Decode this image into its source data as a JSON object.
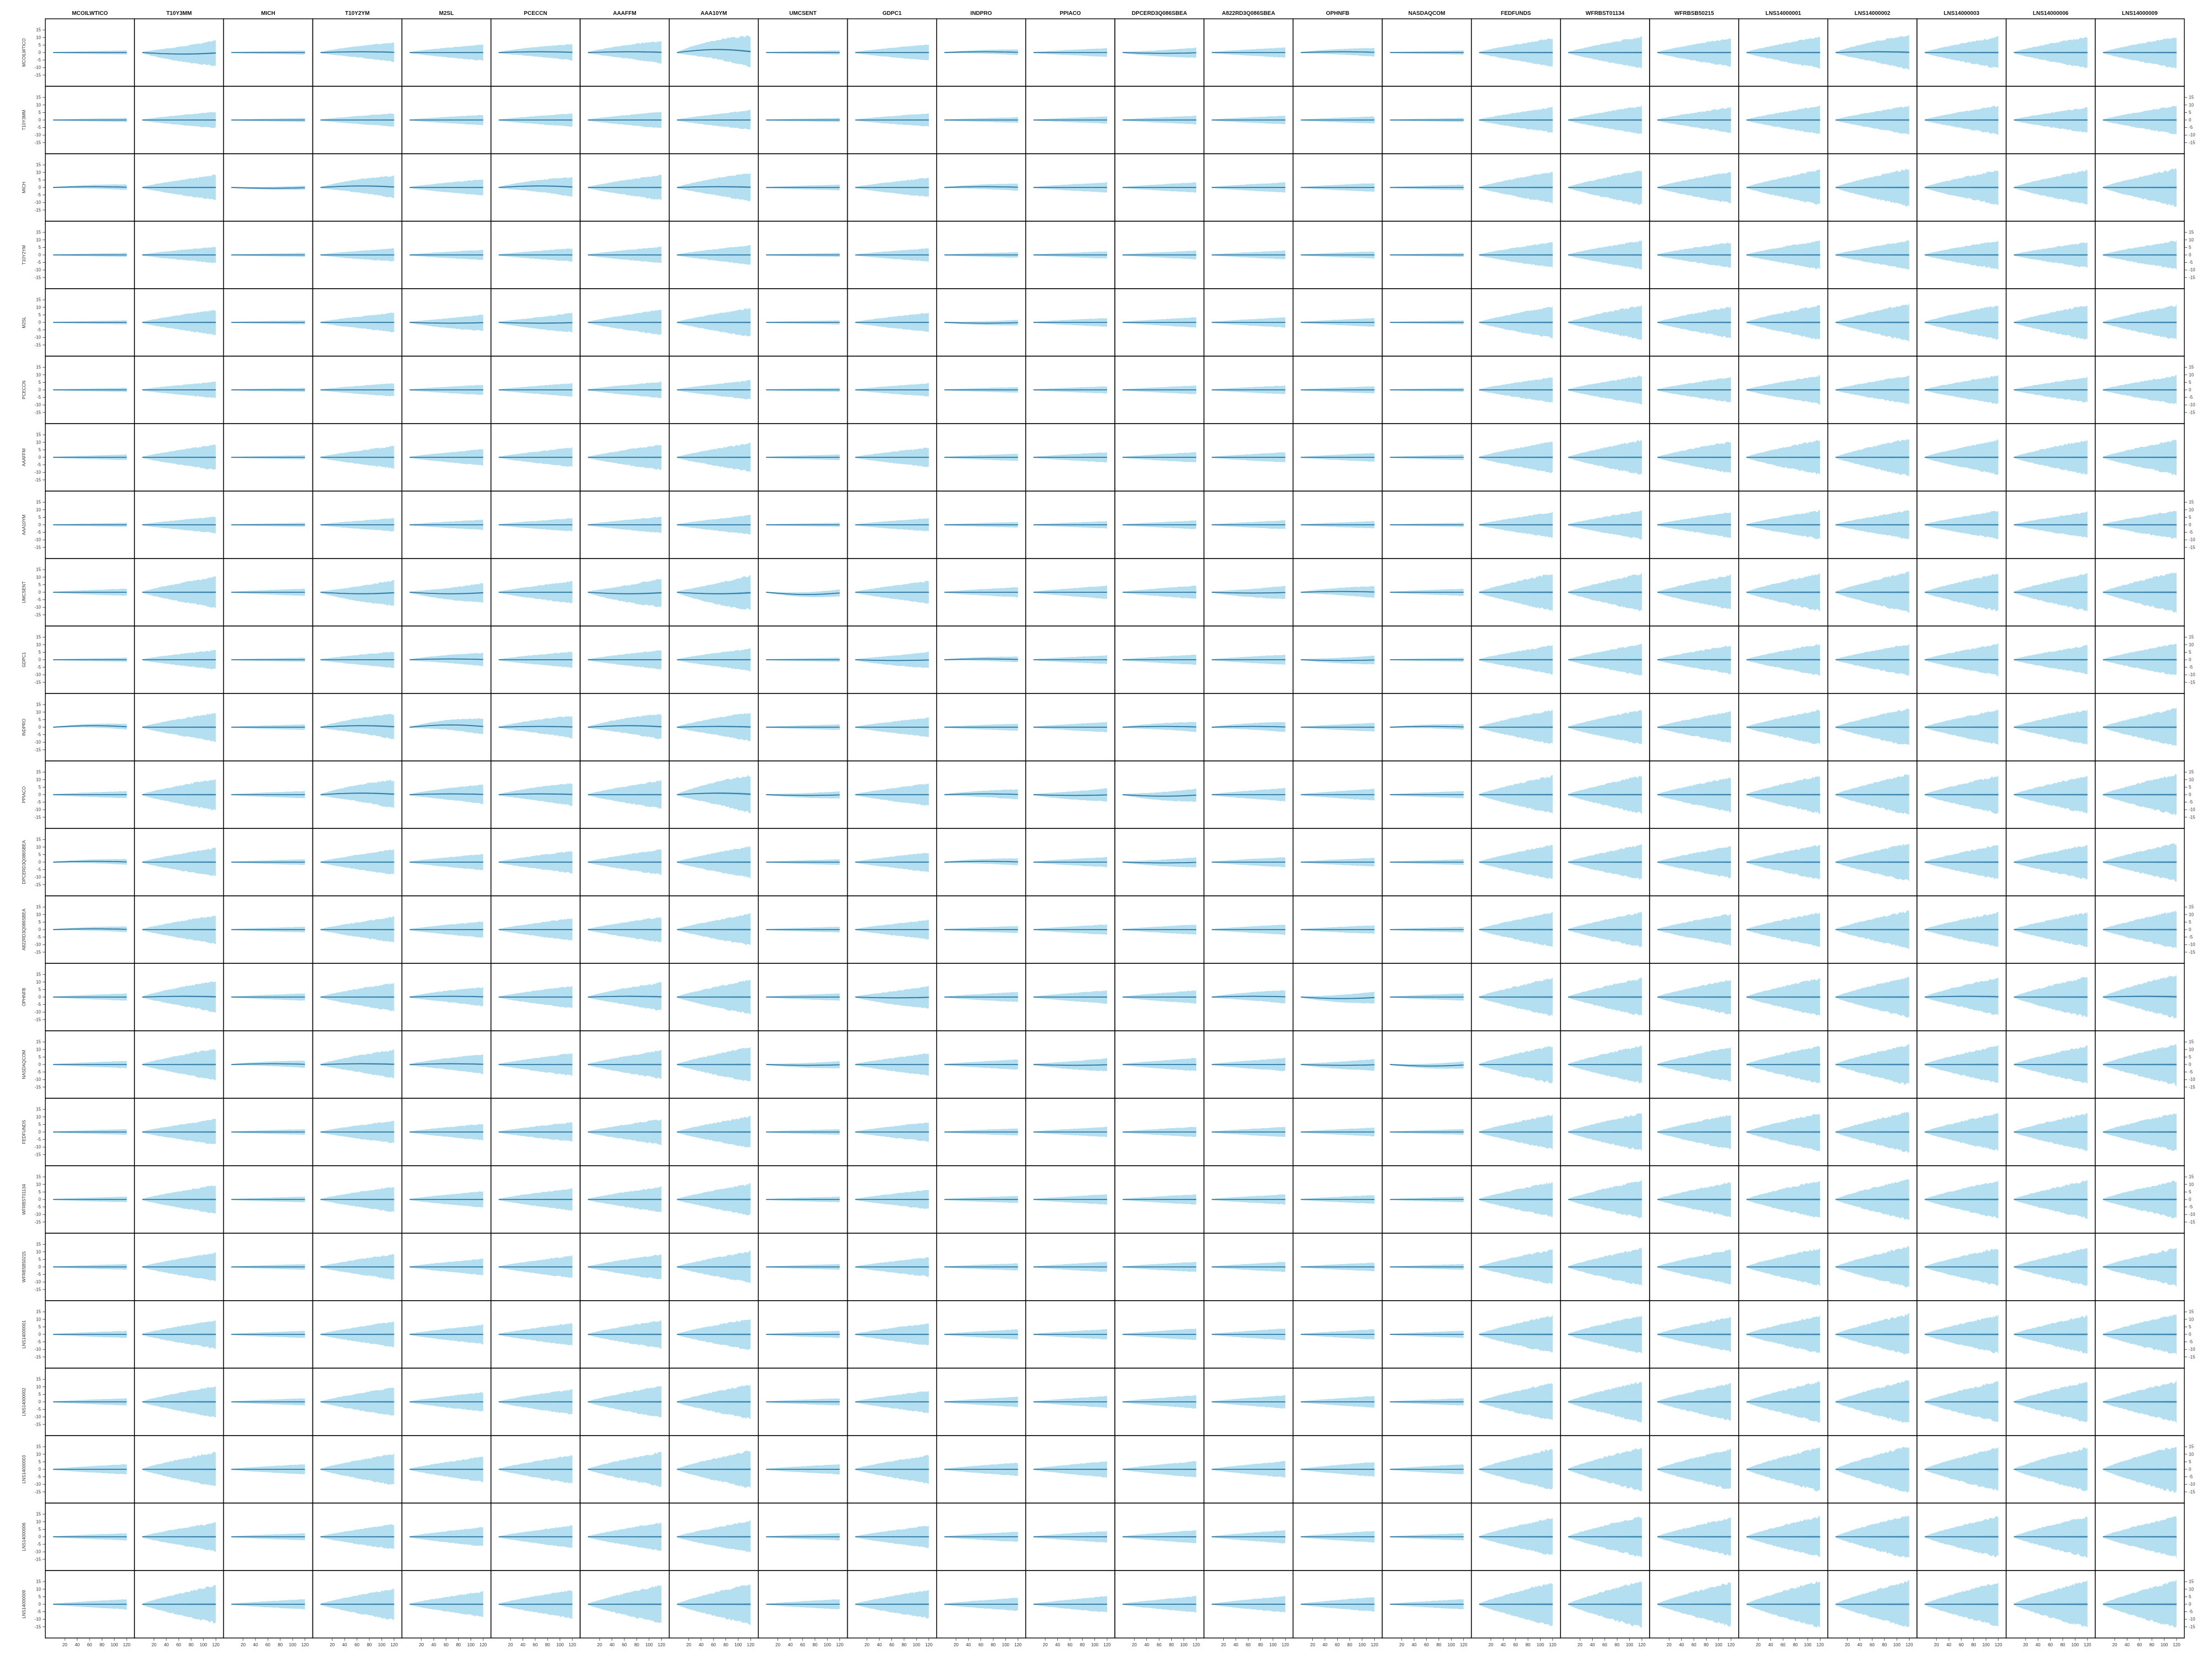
{
  "chart_data": {
    "type": "area",
    "columns": [
      "MCOILWTICO",
      "T10Y3MM",
      "MICH",
      "T10Y2YM",
      "M2SL",
      "PCECCN",
      "AAAFFM",
      "AAA10YM",
      "UMCSENT",
      "GDPC1",
      "INDPRO",
      "PPIACO",
      "DPCERD3Q086SBEA",
      "A822RD3Q086SBEA",
      "OPHNFB",
      "NASDAQCOM",
      "FEDFUNDS",
      "WFRBST01134",
      "WFRBSB50215",
      "LNS14000001",
      "LNS14000002",
      "LNS14000003",
      "LNS14000006",
      "LNS14000009"
    ],
    "rows": [
      "MCOILWTICO",
      "T10Y3MM",
      "MICH",
      "T10Y2YM",
      "M2SL",
      "PCECCN",
      "AAAFFM",
      "AAA10YM",
      "UMCSENT",
      "GDPC1",
      "INDPRO",
      "PPIACO",
      "DPCERD3Q086SBEA",
      "A822RD3Q086SBEA",
      "OPHNFB",
      "NASDAQCOM",
      "FEDFUNDS",
      "WFRBST01134",
      "WFRBSB50215",
      "LNS14000001",
      "LNS14000002",
      "LNS14000003",
      "LNS14000006",
      "LNS14000009"
    ],
    "x_ticks": [
      20,
      40,
      60,
      80,
      100,
      120
    ],
    "xlim": [
      1,
      120
    ],
    "y_ticks": [
      -15,
      -10,
      -5,
      0,
      5,
      10,
      15
    ],
    "ylim": [
      -18,
      18
    ],
    "y_axis_sides": [
      "left",
      "right"
    ],
    "series_colors": {
      "band": "#b3dff1",
      "median": "#2c6f99"
    },
    "band_growth": "width of credible band grows with horizon from the first column to the last",
    "band_terminal_halfwidth": [
      [
        1.0,
        8.0,
        1.0,
        6.0,
        5.0,
        5.0,
        7.0,
        10.0,
        1.0,
        5.0,
        1.5,
        2.5,
        3.0,
        3.0,
        2.5,
        1.0,
        9.0,
        10.0,
        9.0,
        10.0,
        11.0,
        10.0,
        10.0,
        10.0
      ],
      [
        1.0,
        5.0,
        1.0,
        4.0,
        3.0,
        4.0,
        5.0,
        6.0,
        1.0,
        4.0,
        1.5,
        2.0,
        2.5,
        2.5,
        2.0,
        1.0,
        8.0,
        9.0,
        8.0,
        9.0,
        9.0,
        9.0,
        8.0,
        9.0
      ],
      [
        1.5,
        8.0,
        1.0,
        7.0,
        5.0,
        6.0,
        8.0,
        9.0,
        1.5,
        6.0,
        2.0,
        3.0,
        3.0,
        3.0,
        2.5,
        1.5,
        10.0,
        11.0,
        10.0,
        11.0,
        12.0,
        11.0,
        11.0,
        12.0
      ],
      [
        1.0,
        5.0,
        1.0,
        4.0,
        3.0,
        4.0,
        5.0,
        6.0,
        1.0,
        4.0,
        1.5,
        2.0,
        2.5,
        2.5,
        2.0,
        1.0,
        8.0,
        9.0,
        8.0,
        9.0,
        9.0,
        9.0,
        8.0,
        9.0
      ],
      [
        1.0,
        8.0,
        1.0,
        6.0,
        5.0,
        6.0,
        8.0,
        9.0,
        1.0,
        6.0,
        1.5,
        2.5,
        3.0,
        3.0,
        2.5,
        1.0,
        10.0,
        11.0,
        10.0,
        11.0,
        12.0,
        11.0,
        11.0,
        11.0
      ],
      [
        1.0,
        5.0,
        1.0,
        4.0,
        3.0,
        4.0,
        5.0,
        6.0,
        1.0,
        4.0,
        1.5,
        2.0,
        2.5,
        2.5,
        2.0,
        1.0,
        8.0,
        9.0,
        8.0,
        9.0,
        9.0,
        9.0,
        8.0,
        9.0
      ],
      [
        1.5,
        8.0,
        1.0,
        7.0,
        5.0,
        6.0,
        8.0,
        9.0,
        1.5,
        6.0,
        2.0,
        3.0,
        3.0,
        3.0,
        2.5,
        1.5,
        10.0,
        11.0,
        10.0,
        11.0,
        12.0,
        11.0,
        11.0,
        11.0
      ],
      [
        1.0,
        5.0,
        1.0,
        4.0,
        3.0,
        4.0,
        5.0,
        6.0,
        1.0,
        4.0,
        1.5,
        2.0,
        2.5,
        2.5,
        2.0,
        1.0,
        8.0,
        9.0,
        8.0,
        9.0,
        9.0,
        9.0,
        8.0,
        9.0
      ],
      [
        2.0,
        10.0,
        2.0,
        8.0,
        6.0,
        7.0,
        9.0,
        11.0,
        2.0,
        7.0,
        3.0,
        4.0,
        4.0,
        4.0,
        3.5,
        2.0,
        12.0,
        12.0,
        11.0,
        12.0,
        13.0,
        12.0,
        12.0,
        13.0
      ],
      [
        1.0,
        6.0,
        1.0,
        5.0,
        4.0,
        5.0,
        6.0,
        7.0,
        1.0,
        5.0,
        1.5,
        2.5,
        3.0,
        3.0,
        2.5,
        1.0,
        9.0,
        10.0,
        9.0,
        10.0,
        10.0,
        10.0,
        9.0,
        10.0
      ],
      [
        1.5,
        9.0,
        1.5,
        8.0,
        5.0,
        7.0,
        8.0,
        9.0,
        1.5,
        6.0,
        2.0,
        3.0,
        3.0,
        3.0,
        2.5,
        1.5,
        11.0,
        11.0,
        10.0,
        11.0,
        12.0,
        11.0,
        11.0,
        12.0
      ],
      [
        2.0,
        10.0,
        2.0,
        9.0,
        6.0,
        7.0,
        9.0,
        12.0,
        2.0,
        7.0,
        3.0,
        4.0,
        4.0,
        4.0,
        3.5,
        2.0,
        12.0,
        12.0,
        11.0,
        12.0,
        13.0,
        12.0,
        12.0,
        13.0
      ],
      [
        1.5,
        9.0,
        1.5,
        8.0,
        5.0,
        7.0,
        8.0,
        10.0,
        1.5,
        6.0,
        2.0,
        3.0,
        3.0,
        3.0,
        2.5,
        1.5,
        11.0,
        11.0,
        10.0,
        11.0,
        12.0,
        11.0,
        11.0,
        12.0
      ],
      [
        1.5,
        9.0,
        1.5,
        8.0,
        5.0,
        7.0,
        8.0,
        10.0,
        1.5,
        6.0,
        2.0,
        3.0,
        3.0,
        3.0,
        2.5,
        1.5,
        11.0,
        11.0,
        10.0,
        11.0,
        12.0,
        11.0,
        11.0,
        12.0
      ],
      [
        2.0,
        10.0,
        2.0,
        9.0,
        6.0,
        7.0,
        9.0,
        11.0,
        2.0,
        7.0,
        3.0,
        4.0,
        4.0,
        4.0,
        3.5,
        2.0,
        12.0,
        12.0,
        11.0,
        12.0,
        13.0,
        12.0,
        13.0,
        14.0
      ],
      [
        2.0,
        10.0,
        2.0,
        9.0,
        6.0,
        7.0,
        9.0,
        11.0,
        2.0,
        7.0,
        3.0,
        4.0,
        4.0,
        4.0,
        3.5,
        2.0,
        12.0,
        12.0,
        11.0,
        12.0,
        13.0,
        12.0,
        12.0,
        13.0
      ],
      [
        1.5,
        8.0,
        1.5,
        7.0,
        5.0,
        6.0,
        8.0,
        10.0,
        1.5,
        6.0,
        2.0,
        3.0,
        3.0,
        3.0,
        2.5,
        1.5,
        11.0,
        12.0,
        11.0,
        12.0,
        13.0,
        12.0,
        12.0,
        12.0
      ],
      [
        1.5,
        9.0,
        1.5,
        8.0,
        5.0,
        7.0,
        8.0,
        10.0,
        1.5,
        6.0,
        2.0,
        3.0,
        3.0,
        3.0,
        2.5,
        1.5,
        11.0,
        12.0,
        11.0,
        12.0,
        13.0,
        12.0,
        12.0,
        12.0
      ],
      [
        1.5,
        9.0,
        1.5,
        8.0,
        5.0,
        7.0,
        8.0,
        10.0,
        1.5,
        6.0,
        2.0,
        3.0,
        3.0,
        3.0,
        2.5,
        1.5,
        11.0,
        12.0,
        11.0,
        12.0,
        13.0,
        12.0,
        12.0,
        12.0
      ],
      [
        2.0,
        9.0,
        2.0,
        8.0,
        6.0,
        7.0,
        9.0,
        10.0,
        2.0,
        7.0,
        3.0,
        3.0,
        3.5,
        3.5,
        3.0,
        2.0,
        12.0,
        12.0,
        11.0,
        12.0,
        13.0,
        12.0,
        12.0,
        13.0
      ],
      [
        2.0,
        10.0,
        2.0,
        9.0,
        6.0,
        8.0,
        10.0,
        11.0,
        2.0,
        7.0,
        3.0,
        3.5,
        4.0,
        4.0,
        3.5,
        2.0,
        12.0,
        13.0,
        12.0,
        13.0,
        14.0,
        13.0,
        13.0,
        13.0
      ],
      [
        3.0,
        11.0,
        3.0,
        10.0,
        8.0,
        9.0,
        11.0,
        12.0,
        3.0,
        9.0,
        4.0,
        5.0,
        5.0,
        5.0,
        4.5,
        3.0,
        13.0,
        14.0,
        13.0,
        14.0,
        15.0,
        14.0,
        14.0,
        15.0
      ],
      [
        2.0,
        9.0,
        2.0,
        8.0,
        6.0,
        7.0,
        9.0,
        10.0,
        2.0,
        7.0,
        3.0,
        3.5,
        4.0,
        4.0,
        3.5,
        2.0,
        12.0,
        13.0,
        12.0,
        13.0,
        14.0,
        13.0,
        13.0,
        13.0
      ],
      [
        3.0,
        12.0,
        3.0,
        10.0,
        8.0,
        9.0,
        12.0,
        13.0,
        3.0,
        9.0,
        4.0,
        5.0,
        5.0,
        5.0,
        4.5,
        3.0,
        14.0,
        15.0,
        14.0,
        15.0,
        15.0,
        14.0,
        15.0,
        15.0
      ]
    ],
    "median_drift": [
      [
        0.0,
        -1.0,
        0.0,
        0.5,
        0.0,
        0.5,
        0.5,
        2.0,
        0.0,
        0.0,
        0.5,
        0.0,
        -0.5,
        0.0,
        0.5,
        0.0,
        0.0,
        0.0,
        0.0,
        0.0,
        0.5,
        0.0,
        0.0,
        0.0
      ],
      [
        0.0,
        0.0,
        0.0,
        0.0,
        0.0,
        0.0,
        0.0,
        0.0,
        0.0,
        0.0,
        0.0,
        0.0,
        0.0,
        0.0,
        0.0,
        0.0,
        0.0,
        0.0,
        0.0,
        0.0,
        0.0,
        0.0,
        0.0,
        0.0
      ],
      [
        0.5,
        0.0,
        -0.5,
        1.0,
        0.0,
        1.0,
        0.0,
        0.5,
        0.0,
        0.0,
        0.5,
        0.0,
        0.0,
        0.0,
        0.0,
        0.0,
        0.0,
        0.0,
        0.0,
        0.0,
        0.0,
        0.0,
        0.0,
        0.0
      ],
      [
        0.0,
        0.0,
        0.0,
        0.0,
        0.0,
        0.0,
        0.0,
        0.0,
        0.0,
        0.0,
        0.0,
        0.0,
        0.0,
        0.0,
        0.0,
        0.0,
        0.0,
        0.0,
        0.0,
        0.0,
        0.0,
        0.0,
        0.0,
        0.0
      ],
      [
        0.0,
        0.0,
        0.0,
        0.0,
        -0.5,
        -0.5,
        0.0,
        0.0,
        0.0,
        0.0,
        -0.5,
        0.0,
        0.0,
        0.0,
        0.0,
        0.0,
        0.0,
        0.0,
        0.0,
        0.0,
        0.0,
        0.0,
        0.0,
        0.0
      ],
      [
        0.0,
        0.0,
        0.0,
        0.0,
        0.0,
        0.0,
        0.0,
        0.0,
        0.0,
        0.0,
        0.0,
        0.0,
        0.0,
        0.0,
        0.0,
        0.0,
        0.0,
        0.0,
        0.0,
        0.0,
        0.0,
        0.0,
        0.0,
        0.0
      ],
      [
        0.0,
        0.0,
        0.0,
        0.0,
        0.0,
        0.0,
        0.0,
        0.0,
        0.0,
        0.0,
        0.0,
        0.0,
        0.0,
        0.0,
        0.0,
        0.0,
        0.0,
        0.0,
        0.0,
        0.0,
        0.0,
        0.0,
        0.0,
        0.0
      ],
      [
        0.0,
        0.0,
        0.0,
        0.0,
        0.0,
        0.0,
        0.0,
        0.0,
        0.0,
        0.0,
        0.0,
        0.0,
        0.0,
        0.0,
        0.0,
        0.0,
        0.0,
        0.0,
        0.0,
        0.0,
        0.0,
        0.0,
        0.0,
        0.0
      ],
      [
        0.0,
        0.0,
        0.0,
        -1.0,
        -1.0,
        0.0,
        -1.0,
        -1.0,
        -1.5,
        0.0,
        0.0,
        0.0,
        0.0,
        -0.5,
        0.5,
        0.0,
        0.0,
        0.0,
        0.0,
        0.0,
        0.0,
        0.0,
        0.0,
        0.0
      ],
      [
        0.0,
        0.0,
        0.0,
        0.0,
        0.5,
        0.0,
        0.0,
        0.0,
        0.0,
        -0.5,
        0.5,
        0.0,
        0.0,
        0.0,
        -0.5,
        0.0,
        0.0,
        0.0,
        0.0,
        0.0,
        0.0,
        0.0,
        0.0,
        0.0
      ],
      [
        1.0,
        0.0,
        0.0,
        1.0,
        1.5,
        0.5,
        1.0,
        0.5,
        0.0,
        0.0,
        0.0,
        0.0,
        0.5,
        0.5,
        0.0,
        0.5,
        0.0,
        0.0,
        0.0,
        0.0,
        0.0,
        0.0,
        0.0,
        0.0
      ],
      [
        0.0,
        0.0,
        0.0,
        1.0,
        0.5,
        0.5,
        0.0,
        1.0,
        -0.5,
        0.0,
        0.5,
        -0.5,
        -1.0,
        0.0,
        0.0,
        0.0,
        0.0,
        0.0,
        0.0,
        0.0,
        0.0,
        0.0,
        0.0,
        0.0
      ],
      [
        0.5,
        0.0,
        0.0,
        0.0,
        0.0,
        0.0,
        0.0,
        0.0,
        0.0,
        0.0,
        0.5,
        0.0,
        -0.5,
        0.0,
        0.0,
        0.0,
        0.0,
        0.0,
        0.0,
        0.0,
        0.0,
        0.0,
        0.0,
        0.0
      ],
      [
        0.5,
        0.0,
        0.0,
        0.0,
        0.0,
        0.0,
        0.0,
        0.0,
        0.0,
        0.0,
        0.0,
        0.0,
        0.0,
        0.0,
        0.0,
        0.0,
        0.0,
        0.0,
        0.0,
        0.0,
        0.0,
        0.0,
        0.0,
        0.0
      ],
      [
        0.0,
        0.5,
        0.0,
        0.0,
        0.5,
        0.0,
        0.5,
        0.0,
        0.0,
        -0.5,
        0.0,
        0.0,
        0.0,
        0.5,
        -1.0,
        0.0,
        0.0,
        0.0,
        0.0,
        0.0,
        0.0,
        0.5,
        0.0,
        0.5
      ],
      [
        0.0,
        0.0,
        0.5,
        0.5,
        0.5,
        0.0,
        0.0,
        0.0,
        -0.5,
        0.0,
        0.0,
        -0.5,
        0.0,
        0.0,
        -0.5,
        -1.0,
        0.0,
        0.0,
        0.0,
        0.0,
        0.0,
        0.0,
        0.0,
        0.0
      ],
      [
        0.0,
        0.0,
        0.0,
        0.0,
        0.0,
        0.0,
        0.0,
        0.0,
        0.0,
        0.0,
        0.0,
        0.0,
        0.0,
        0.0,
        0.0,
        0.0,
        0.0,
        0.0,
        0.0,
        0.0,
        0.0,
        0.0,
        0.0,
        0.0
      ],
      [
        0.0,
        0.0,
        0.0,
        0.0,
        0.0,
        0.0,
        0.0,
        0.0,
        0.0,
        0.0,
        0.0,
        0.0,
        0.0,
        0.0,
        0.0,
        0.0,
        0.0,
        0.0,
        0.0,
        0.0,
        0.0,
        0.0,
        0.0,
        0.0
      ],
      [
        0.0,
        0.0,
        0.0,
        0.0,
        0.0,
        0.0,
        0.0,
        0.0,
        0.0,
        0.0,
        0.0,
        0.0,
        0.0,
        0.0,
        0.0,
        0.0,
        0.0,
        0.0,
        0.0,
        0.0,
        0.0,
        0.0,
        0.0,
        0.0
      ],
      [
        0.0,
        0.0,
        0.0,
        0.0,
        0.0,
        0.0,
        0.0,
        0.0,
        0.0,
        0.0,
        0.0,
        0.0,
        0.0,
        0.0,
        0.0,
        0.0,
        0.0,
        0.0,
        0.0,
        0.0,
        0.0,
        0.0,
        0.0,
        0.0
      ],
      [
        0.0,
        0.0,
        0.0,
        0.0,
        0.0,
        0.0,
        0.0,
        0.0,
        0.0,
        0.0,
        0.0,
        0.0,
        0.0,
        0.0,
        0.0,
        0.0,
        0.0,
        0.0,
        0.0,
        0.0,
        0.0,
        0.0,
        0.0,
        0.0
      ],
      [
        0.0,
        0.0,
        0.0,
        0.0,
        0.0,
        0.0,
        0.0,
        0.0,
        0.0,
        0.0,
        0.0,
        0.0,
        0.0,
        0.0,
        0.0,
        0.0,
        0.0,
        0.0,
        0.0,
        0.0,
        0.0,
        0.0,
        0.0,
        0.0
      ],
      [
        0.0,
        0.0,
        0.0,
        0.0,
        0.0,
        0.0,
        0.0,
        0.0,
        0.0,
        0.0,
        0.0,
        0.0,
        0.0,
        0.0,
        0.0,
        0.0,
        0.0,
        0.0,
        0.0,
        0.0,
        0.0,
        0.0,
        0.0,
        0.0
      ],
      [
        0.0,
        0.0,
        0.0,
        0.0,
        0.0,
        0.0,
        0.0,
        0.0,
        0.0,
        0.0,
        0.0,
        0.0,
        0.0,
        0.0,
        0.0,
        0.0,
        0.0,
        0.0,
        0.0,
        0.0,
        0.0,
        0.0,
        0.0,
        0.0
      ]
    ]
  }
}
